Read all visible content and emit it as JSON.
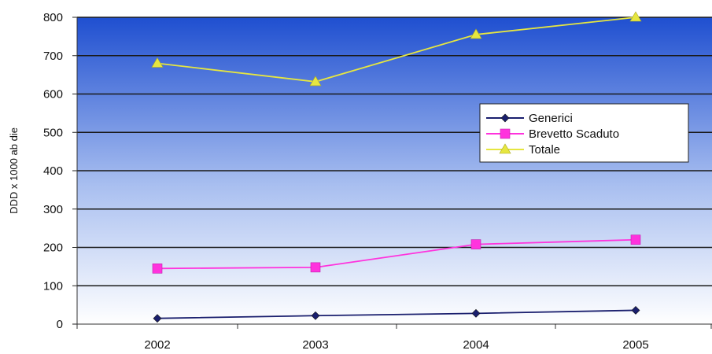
{
  "chart_data": {
    "type": "line",
    "title": "",
    "xlabel": "",
    "ylabel": "DDD x 1000 ab die",
    "categories": [
      "2002",
      "2003",
      "2004",
      "2005"
    ],
    "ylim": [
      0,
      800
    ],
    "yticks": [
      "0",
      "100",
      "200",
      "300",
      "400",
      "500",
      "600",
      "700",
      "800"
    ],
    "grid": true,
    "legend_position": "right",
    "series": [
      {
        "name": "Generici",
        "values": [
          15,
          22,
          28,
          36
        ],
        "color": "#1a1f6e",
        "marker": "diamond"
      },
      {
        "name": "Brevetto Scaduto",
        "values": [
          145,
          148,
          208,
          220
        ],
        "color": "#ff33dd",
        "marker": "square"
      },
      {
        "name": "Totale",
        "values": [
          680,
          632,
          755,
          800
        ],
        "color": "#e6e640",
        "marker": "triangle"
      }
    ]
  }
}
